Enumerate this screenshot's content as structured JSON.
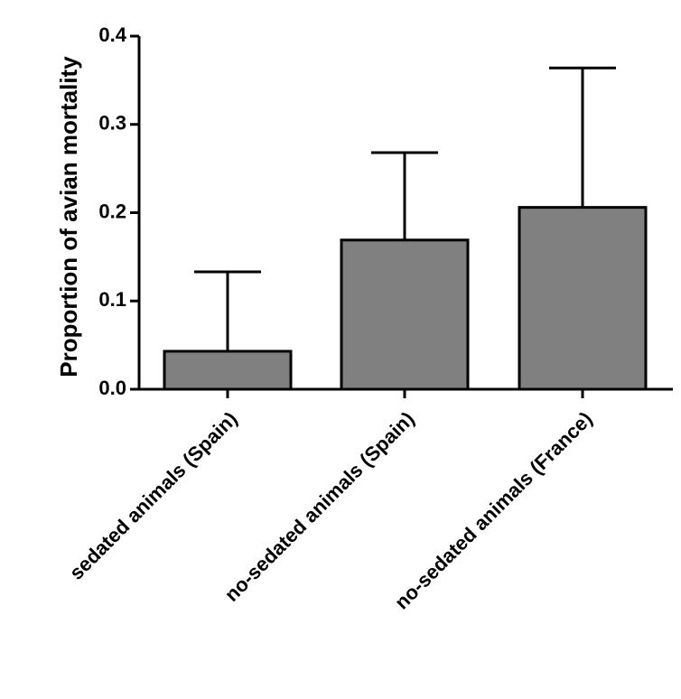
{
  "chart_data": {
    "type": "bar",
    "categories": [
      "sedated animals (Spain)",
      "no-sedated animals (Spain)",
      "no-sedated animals (France)"
    ],
    "values": [
      0.043,
      0.169,
      0.206
    ],
    "error_upper": [
      0.133,
      0.268,
      0.364
    ],
    "ylabel": "Proportion of avian mortality",
    "ylim": [
      0,
      0.4
    ],
    "yticks": [
      0.0,
      0.1,
      0.2,
      0.3,
      0.4
    ],
    "ytick_labels": [
      "0.0",
      "0.1",
      "0.2",
      "0.3",
      "0.4"
    ],
    "bar_color": "#808080",
    "grid": false,
    "legend": "none"
  }
}
